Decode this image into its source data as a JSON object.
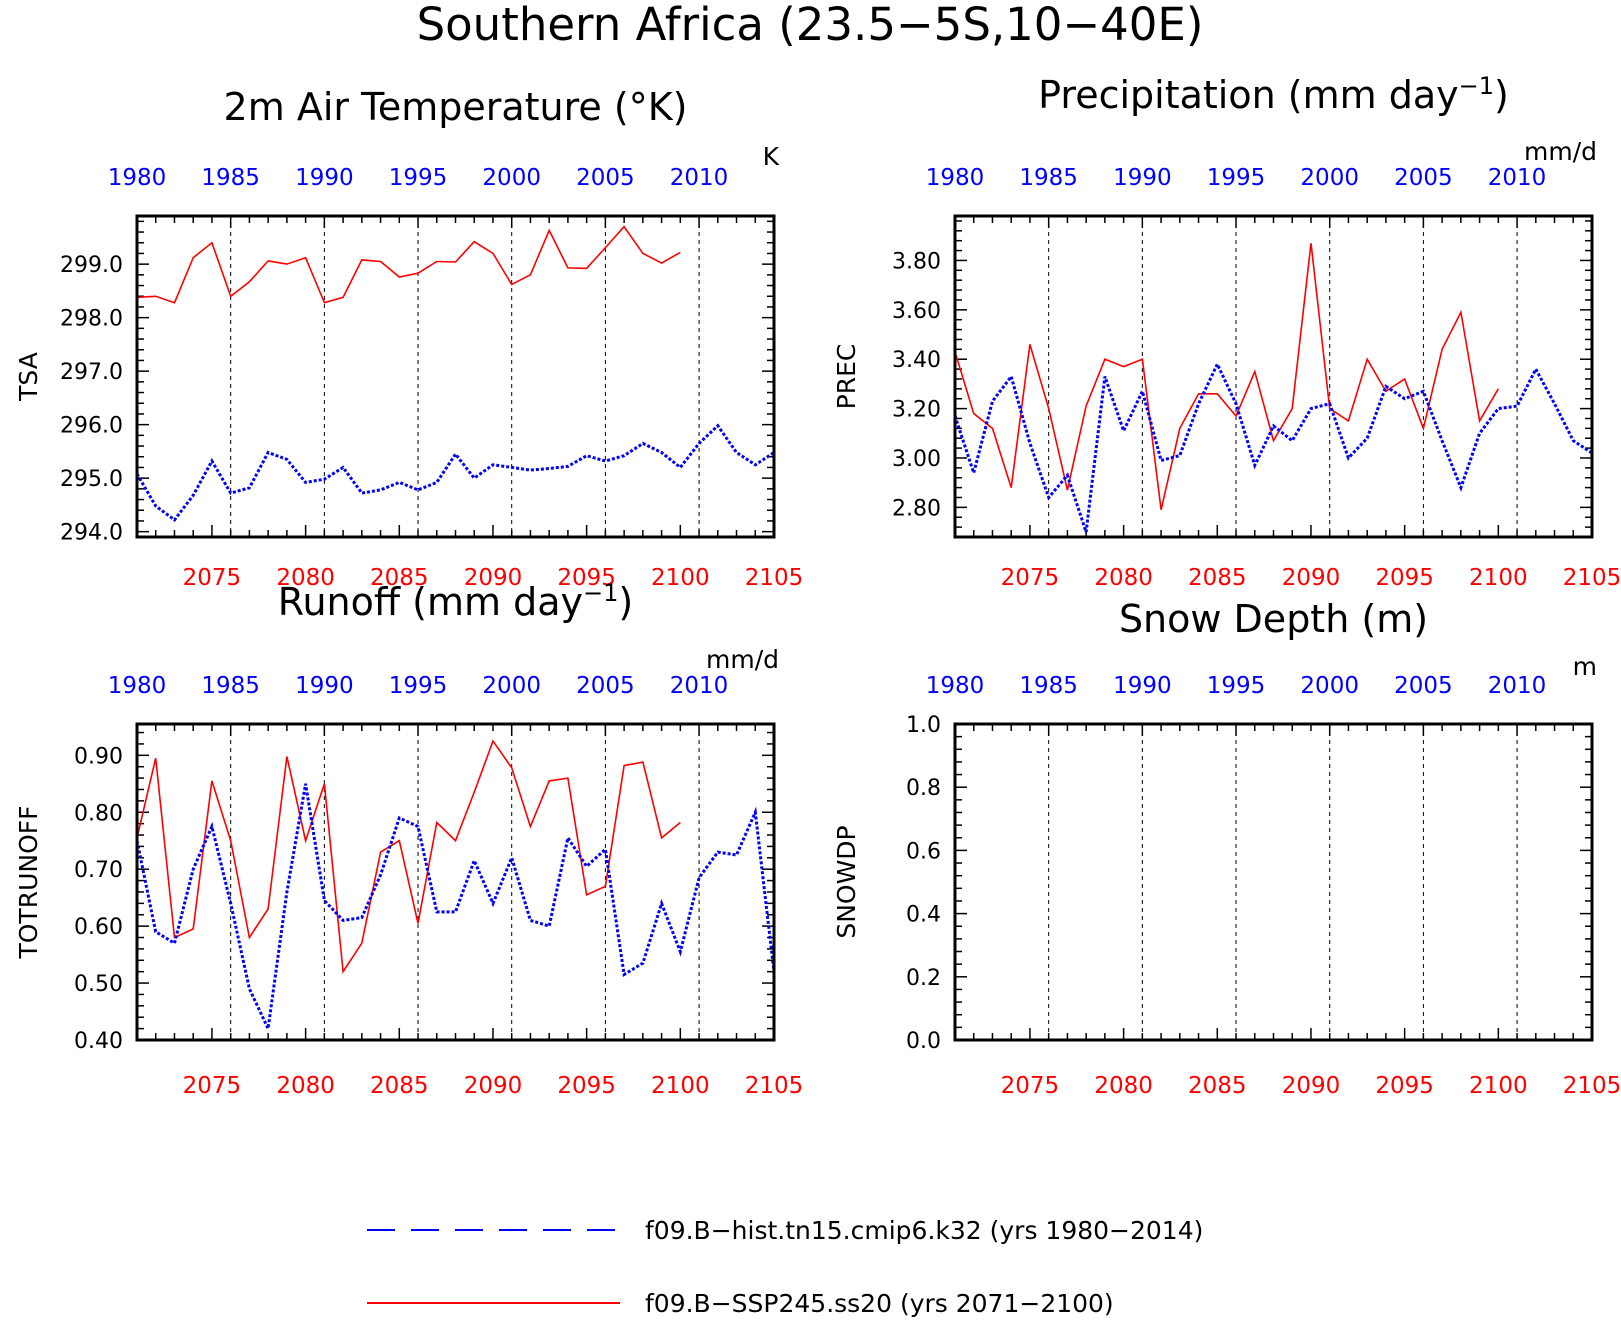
{
  "figure": {
    "title": "Southern Africa (23.5−5S,10−40E)",
    "legend": [
      {
        "label": "f09.B−hist.tn15.cmip6.k32 (yrs 1980−2014)",
        "color": "#0000ff",
        "style": "dashed"
      },
      {
        "label": "f09.B−SSP245.ss20 (yrs 2071−2100)",
        "color": "#ff0000",
        "style": "solid"
      }
    ]
  },
  "chart_data": [
    {
      "type": "line",
      "title": "2m Air Temperature (°K)",
      "title_sup": "",
      "title_tail": "",
      "ylabel": "TSA",
      "units": "K",
      "ylim": [
        293.9,
        299.9
      ],
      "yticks": [
        294.0,
        295.0,
        296.0,
        297.0,
        298.0,
        299.0
      ],
      "ytick_labels": [
        "294.0",
        "295.0",
        "296.0",
        "297.0",
        "298.0",
        "299.0"
      ],
      "x_top": {
        "label_years": [
          1980,
          1985,
          1990,
          1995,
          2000,
          2005,
          2010
        ],
        "range": [
          1980,
          2014
        ]
      },
      "x_bottom": {
        "label_years": [
          2075,
          2080,
          2085,
          2090,
          2095,
          2100,
          2105
        ],
        "range": [
          2071,
          2105
        ]
      },
      "series": [
        {
          "color": "#ff0000",
          "style": "solid",
          "start_year": 2071,
          "values": [
            298.38,
            298.4,
            298.28,
            299.12,
            299.4,
            298.4,
            298.67,
            299.06,
            299.0,
            299.12,
            298.28,
            298.38,
            299.08,
            299.05,
            298.76,
            298.83,
            299.05,
            299.04,
            299.42,
            299.2,
            298.62,
            298.8,
            299.63,
            298.93,
            298.92,
            299.31,
            299.7,
            299.2,
            299.02,
            299.22
          ]
        },
        {
          "color": "#0000ff",
          "style": "dashed",
          "start_year": 1980,
          "values": [
            295.08,
            294.48,
            294.22,
            294.68,
            295.32,
            294.72,
            294.82,
            295.48,
            295.35,
            294.92,
            294.98,
            295.2,
            294.72,
            294.78,
            294.92,
            294.78,
            294.92,
            295.45,
            295.0,
            295.25,
            295.2,
            295.15,
            295.18,
            295.22,
            295.42,
            295.32,
            295.42,
            295.65,
            295.48,
            295.2,
            295.65,
            295.98,
            295.48,
            295.25,
            295.48
          ]
        }
      ]
    },
    {
      "type": "line",
      "title": "Precipitation (mm day",
      "title_sup": "−1",
      "title_tail": ")",
      "ylabel": "PREC",
      "units": "mm/d",
      "ylim": [
        2.68,
        3.98
      ],
      "yticks": [
        2.8,
        3.0,
        3.2,
        3.4,
        3.6,
        3.8
      ],
      "ytick_labels": [
        "2.80",
        "3.00",
        "3.20",
        "3.40",
        "3.60",
        "3.80"
      ],
      "x_top": {
        "label_years": [
          1980,
          1985,
          1990,
          1995,
          2000,
          2005,
          2010
        ],
        "range": [
          1980,
          2014
        ]
      },
      "x_bottom": {
        "label_years": [
          2075,
          2080,
          2085,
          2090,
          2095,
          2100,
          2105
        ],
        "range": [
          2071,
          2105
        ]
      },
      "series": [
        {
          "color": "#ff0000",
          "style": "solid",
          "start_year": 2071,
          "values": [
            3.43,
            3.18,
            3.12,
            2.88,
            3.46,
            3.2,
            2.87,
            3.21,
            3.4,
            3.37,
            3.4,
            2.79,
            3.12,
            3.26,
            3.26,
            3.17,
            3.35,
            3.07,
            3.2,
            3.87,
            3.2,
            3.15,
            3.4,
            3.27,
            3.32,
            3.12,
            3.44,
            3.59,
            3.15,
            3.28
          ]
        },
        {
          "color": "#0000ff",
          "style": "dashed",
          "start_year": 1980,
          "values": [
            3.17,
            2.94,
            3.23,
            3.33,
            3.06,
            2.84,
            2.93,
            2.7,
            3.33,
            3.11,
            3.27,
            2.99,
            3.01,
            3.22,
            3.38,
            3.22,
            2.97,
            3.13,
            3.07,
            3.2,
            3.22,
            3.0,
            3.08,
            3.29,
            3.24,
            3.27,
            3.07,
            2.88,
            3.1,
            3.2,
            3.21,
            3.36,
            3.22,
            3.07,
            3.02
          ]
        }
      ]
    },
    {
      "type": "line",
      "title": "Runoff (mm day",
      "title_sup": "−1",
      "title_tail": ")",
      "ylabel": "TOTRUNOFF",
      "units": "mm/d",
      "ylim": [
        0.4,
        0.955
      ],
      "yticks": [
        0.4,
        0.5,
        0.6,
        0.7,
        0.8,
        0.9
      ],
      "ytick_labels": [
        "0.40",
        "0.50",
        "0.60",
        "0.70",
        "0.80",
        "0.90"
      ],
      "x_top": {
        "label_years": [
          1980,
          1985,
          1990,
          1995,
          2000,
          2005,
          2010
        ],
        "range": [
          1980,
          2014
        ]
      },
      "x_bottom": {
        "label_years": [
          2075,
          2080,
          2085,
          2090,
          2095,
          2100,
          2105
        ],
        "range": [
          2071,
          2105
        ]
      },
      "series": [
        {
          "color": "#ff0000",
          "style": "solid",
          "start_year": 2071,
          "values": [
            0.755,
            0.895,
            0.58,
            0.595,
            0.855,
            0.75,
            0.58,
            0.63,
            0.898,
            0.75,
            0.85,
            0.52,
            0.57,
            0.73,
            0.75,
            0.605,
            0.782,
            0.75,
            0.835,
            0.925,
            0.878,
            0.775,
            0.855,
            0.86,
            0.655,
            0.67,
            0.882,
            0.888,
            0.755,
            0.782
          ]
        },
        {
          "color": "#0000ff",
          "style": "dashed",
          "start_year": 1980,
          "values": [
            0.75,
            0.59,
            0.57,
            0.7,
            0.775,
            0.64,
            0.49,
            0.42,
            0.66,
            0.85,
            0.645,
            0.61,
            0.615,
            0.69,
            0.79,
            0.775,
            0.625,
            0.625,
            0.715,
            0.64,
            0.72,
            0.61,
            0.6,
            0.755,
            0.705,
            0.735,
            0.515,
            0.535,
            0.64,
            0.555,
            0.685,
            0.73,
            0.725,
            0.8,
            0.52
          ]
        }
      ]
    },
    {
      "type": "line",
      "title": "Snow Depth (m)",
      "title_sup": "",
      "title_tail": "",
      "ylabel": "SNOWDP",
      "units": "m",
      "ylim": [
        0.0,
        1.0
      ],
      "yticks": [
        0.0,
        0.2,
        0.4,
        0.6,
        0.8,
        1.0
      ],
      "ytick_labels": [
        "0.0",
        "0.2",
        "0.4",
        "0.6",
        "0.8",
        "1.0"
      ],
      "x_top": {
        "label_years": [
          1980,
          1985,
          1990,
          1995,
          2000,
          2005,
          2010
        ],
        "range": [
          1980,
          2014
        ]
      },
      "x_bottom": {
        "label_years": [
          2075,
          2080,
          2085,
          2090,
          2095,
          2100,
          2105
        ],
        "range": [
          2071,
          2105
        ]
      },
      "series": []
    }
  ]
}
